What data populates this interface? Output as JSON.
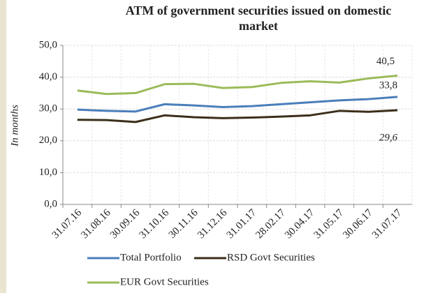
{
  "chart_data": {
    "type": "line",
    "title": "ATM of government securities issued on domestic market",
    "y_label": "In months",
    "categories": [
      "31.07.16",
      "31.08.16",
      "30.09.16",
      "31.10.16",
      "30.11.16",
      "31.12.16",
      "31.01.17",
      "28.02.17",
      "30.04.17",
      "31.05.17",
      "30.06.17",
      "31.07.17"
    ],
    "series": [
      {
        "name": "Total Portfolio",
        "color": "#4a7ebb",
        "values": [
          29.8,
          29.4,
          29.2,
          31.5,
          31.1,
          30.6,
          30.9,
          31.5,
          32.1,
          32.7,
          33.1,
          33.8
        ],
        "value_labels": [
          null,
          null,
          null,
          null,
          null,
          null,
          null,
          null,
          null,
          null,
          null,
          "33,8"
        ]
      },
      {
        "name": "RSD Govt Securities",
        "color": "#3b2e1a",
        "values": [
          26.6,
          26.5,
          25.9,
          28.0,
          27.4,
          27.1,
          27.3,
          27.6,
          28.0,
          29.4,
          29.1,
          29.6
        ],
        "value_labels": [
          null,
          null,
          null,
          null,
          null,
          null,
          null,
          null,
          null,
          null,
          null,
          "29,6"
        ]
      },
      {
        "name": "EUR Govt Securities",
        "color": "#9bbb59",
        "values": [
          35.8,
          34.7,
          35.0,
          37.8,
          37.9,
          36.6,
          36.9,
          38.2,
          38.7,
          38.3,
          39.6,
          40.5
        ],
        "value_labels": [
          null,
          null,
          null,
          null,
          null,
          null,
          null,
          null,
          null,
          null,
          null,
          "40,5"
        ]
      }
    ],
    "ylim": [
      0,
      50
    ],
    "yticks": [
      {
        "value": 0,
        "label": "0,0"
      },
      {
        "value": 10,
        "label": "10,0"
      },
      {
        "value": 20,
        "label": "20,0"
      },
      {
        "value": 30,
        "label": "30,0"
      },
      {
        "value": 40,
        "label": "40,0"
      },
      {
        "value": 50,
        "label": "50,0"
      }
    ],
    "grid": true
  }
}
